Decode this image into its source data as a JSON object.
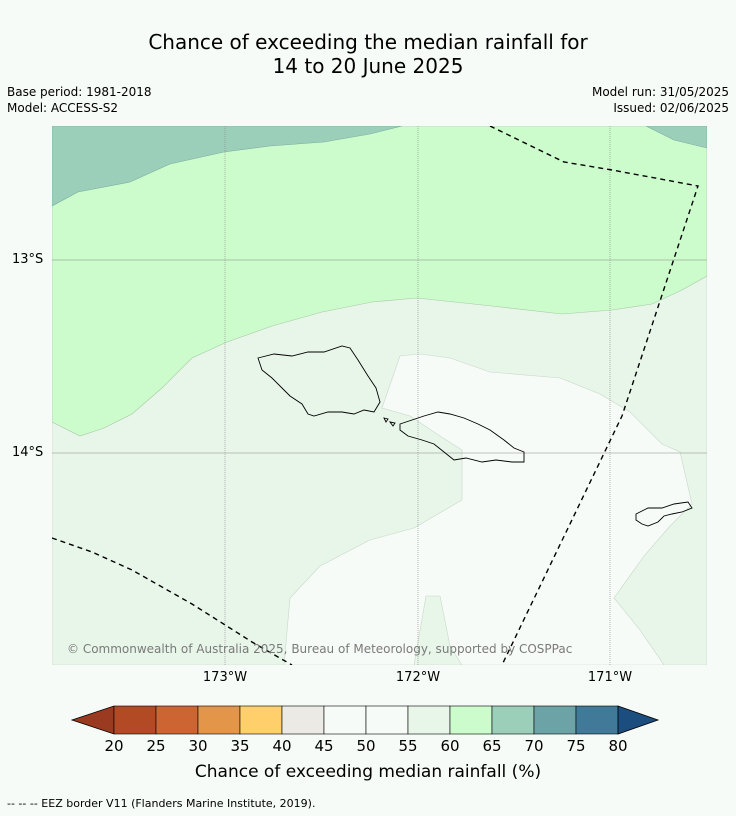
{
  "title": {
    "line1": "Chance of exceeding the median rainfall for",
    "line2": "14 to 20 June 2025"
  },
  "meta": {
    "base_period": "Base period: 1981-2018",
    "model": "Model: ACCESS-S2",
    "model_run": "Model run: 31/05/2025",
    "issued": "Issued: 02/06/2025"
  },
  "map": {
    "lat_labels": [
      "13°S",
      "14°S"
    ],
    "lon_labels": [
      "173°W",
      "172°W",
      "171°W"
    ],
    "copyright": "© Commonwealth of Australia 2025, Bureau of Meteorology, supported by COSPPac"
  },
  "colorbar": {
    "ticks": [
      "20",
      "25",
      "30",
      "35",
      "40",
      "45",
      "50",
      "55",
      "60",
      "65",
      "70",
      "75",
      "80"
    ],
    "colors": [
      "#b24a25",
      "#cd6533",
      "#e39549",
      "#fecf6a",
      "#ebeae5",
      "#f7fbf8",
      "#f7fbf8",
      "#e8f5e9",
      "#ccfccc",
      "#9ccfba",
      "#6ca3a7",
      "#417a99"
    ],
    "under_color": "#9a3a20",
    "over_color": "#1b4e7e",
    "label": "Chance of exceeding median rainfall (%)"
  },
  "footer": "--  --  -- EEZ border V11 (Flanders Marine Institute, 2019)."
}
